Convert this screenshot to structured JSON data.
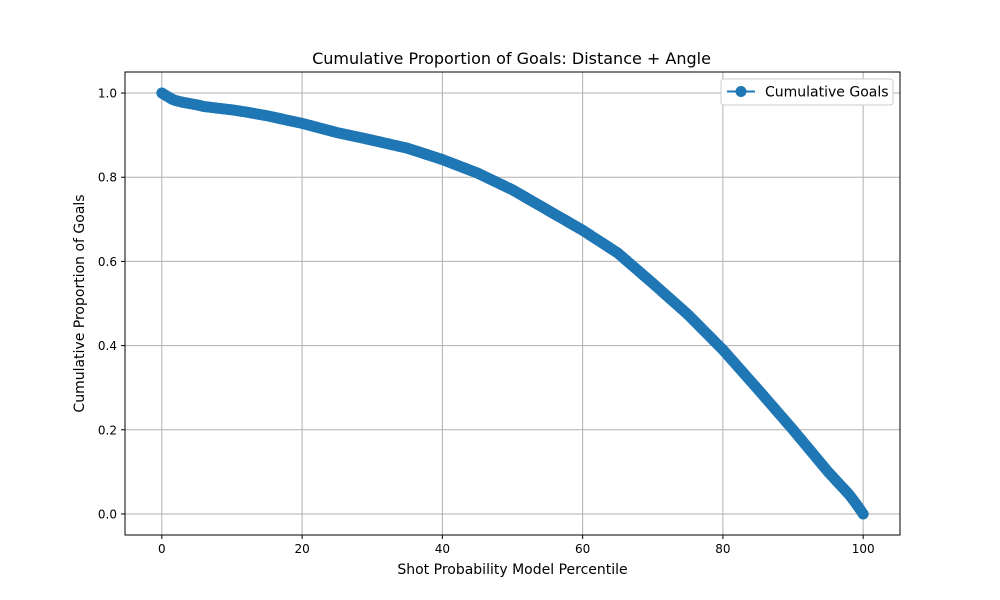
{
  "chart_data": {
    "type": "line",
    "title": "Cumulative Proportion of Goals: Distance + Angle",
    "xlabel": "Shot Probability Model Percentile",
    "ylabel": "Cumulative Proportion of Goals",
    "xlim": [
      -5.25,
      105.25
    ],
    "ylim": [
      -0.05,
      1.05
    ],
    "x_ticks": [
      0,
      20,
      40,
      60,
      80,
      100
    ],
    "y_ticks": [
      0.0,
      0.2,
      0.4,
      0.6,
      0.8,
      1.0
    ],
    "x_tick_labels": [
      "0",
      "20",
      "40",
      "60",
      "80",
      "100"
    ],
    "y_tick_labels": [
      "0.0",
      "0.2",
      "0.4",
      "0.6",
      "0.8",
      "1.0"
    ],
    "grid": true,
    "legend": {
      "position": "top-right",
      "entries": [
        "Cumulative Goals"
      ]
    },
    "series": [
      {
        "name": "Cumulative Goals",
        "color": "#1f77b4",
        "marker": "circle",
        "x": [
          0,
          0.5,
          1,
          1.5,
          2,
          3,
          4,
          5,
          6,
          8,
          10,
          12,
          15,
          20,
          25,
          30,
          35,
          40,
          45,
          50,
          55,
          60,
          65,
          70,
          75,
          80,
          85,
          90,
          95,
          98,
          99,
          100
        ],
        "y": [
          1.0,
          0.995,
          0.99,
          0.985,
          0.982,
          0.978,
          0.975,
          0.972,
          0.968,
          0.964,
          0.96,
          0.955,
          0.946,
          0.928,
          0.906,
          0.888,
          0.869,
          0.842,
          0.81,
          0.77,
          0.722,
          0.674,
          0.62,
          0.548,
          0.474,
          0.39,
          0.296,
          0.2,
          0.1,
          0.046,
          0.024,
          0.0
        ]
      }
    ]
  }
}
